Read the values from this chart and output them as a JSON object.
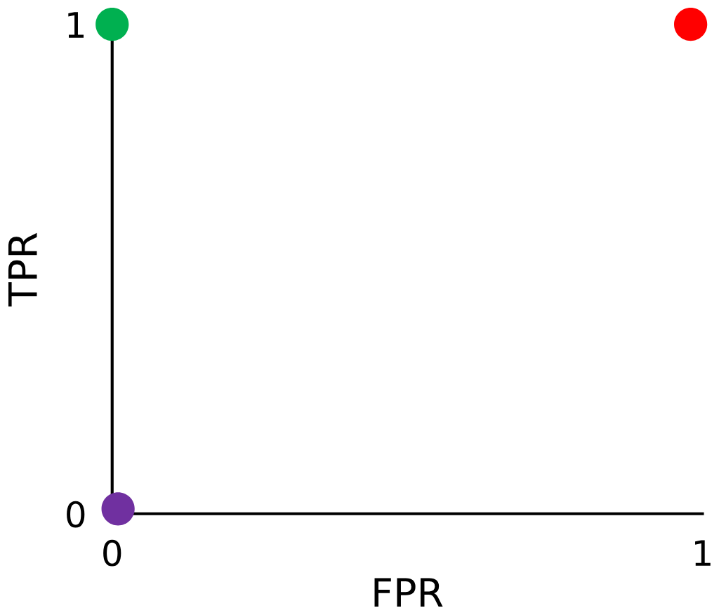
{
  "chart_data": {
    "type": "scatter",
    "xlabel": "FPR",
    "ylabel": "TPR",
    "x": [
      0,
      0.98,
      0.01
    ],
    "values": [
      1,
      1,
      0.01
    ],
    "colors": [
      "#00b050",
      "#ff0000",
      "#7030a0"
    ],
    "xlim": [
      0,
      1
    ],
    "ylim": [
      0,
      1
    ],
    "xticks": [
      0,
      1
    ],
    "yticks": [
      0,
      1
    ],
    "grid": false,
    "marker": "circle"
  }
}
